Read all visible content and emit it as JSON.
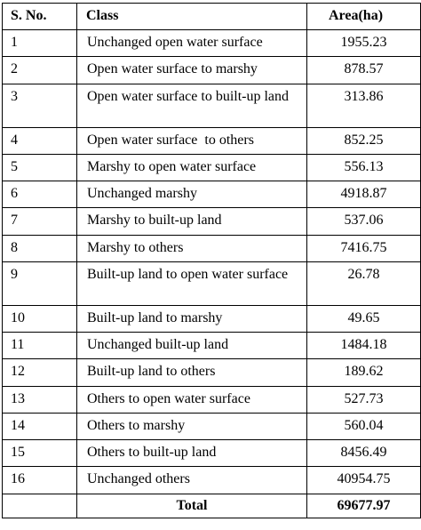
{
  "table": {
    "headers": [
      "S. No.",
      "Class",
      "Area(ha)"
    ],
    "rows": [
      {
        "no": "1",
        "cls": "Unchanged open water surface",
        "area": "1955.23"
      },
      {
        "no": "2",
        "cls": "Open water surface to marshy",
        "area": "878.57"
      },
      {
        "no": "3",
        "cls": "Open water surface to built-up land",
        "area": "313.86"
      },
      {
        "no": "4",
        "cls": "Open water surface  to others",
        "area": "852.25"
      },
      {
        "no": "5",
        "cls": "Marshy to open water surface",
        "area": "556.13"
      },
      {
        "no": "6",
        "cls": "Unchanged marshy",
        "area": "4918.87"
      },
      {
        "no": "7",
        "cls": "Marshy to built-up land",
        "area": "537.06"
      },
      {
        "no": "8",
        "cls": "Marshy to others",
        "area": "7416.75"
      },
      {
        "no": "9",
        "cls": "Built-up  land to open water surface",
        "area": "26.78"
      },
      {
        "no": "10",
        "cls": "Built-up land to marshy",
        "area": "49.65"
      },
      {
        "no": "11",
        "cls": "Unchanged built-up land",
        "area": "1484.18"
      },
      {
        "no": "12",
        "cls": "Built-up land to others",
        "area": "189.62"
      },
      {
        "no": "13",
        "cls": "Others to open water surface",
        "area": "527.73"
      },
      {
        "no": "14",
        "cls": "Others to marshy",
        "area": "560.04"
      },
      {
        "no": "15",
        "cls": "Others to built-up land",
        "area": "8456.49"
      },
      {
        "no": "16",
        "cls": "Unchanged others",
        "area": "40954.75"
      }
    ],
    "total_label": "Total",
    "total_value": "69677.97"
  }
}
